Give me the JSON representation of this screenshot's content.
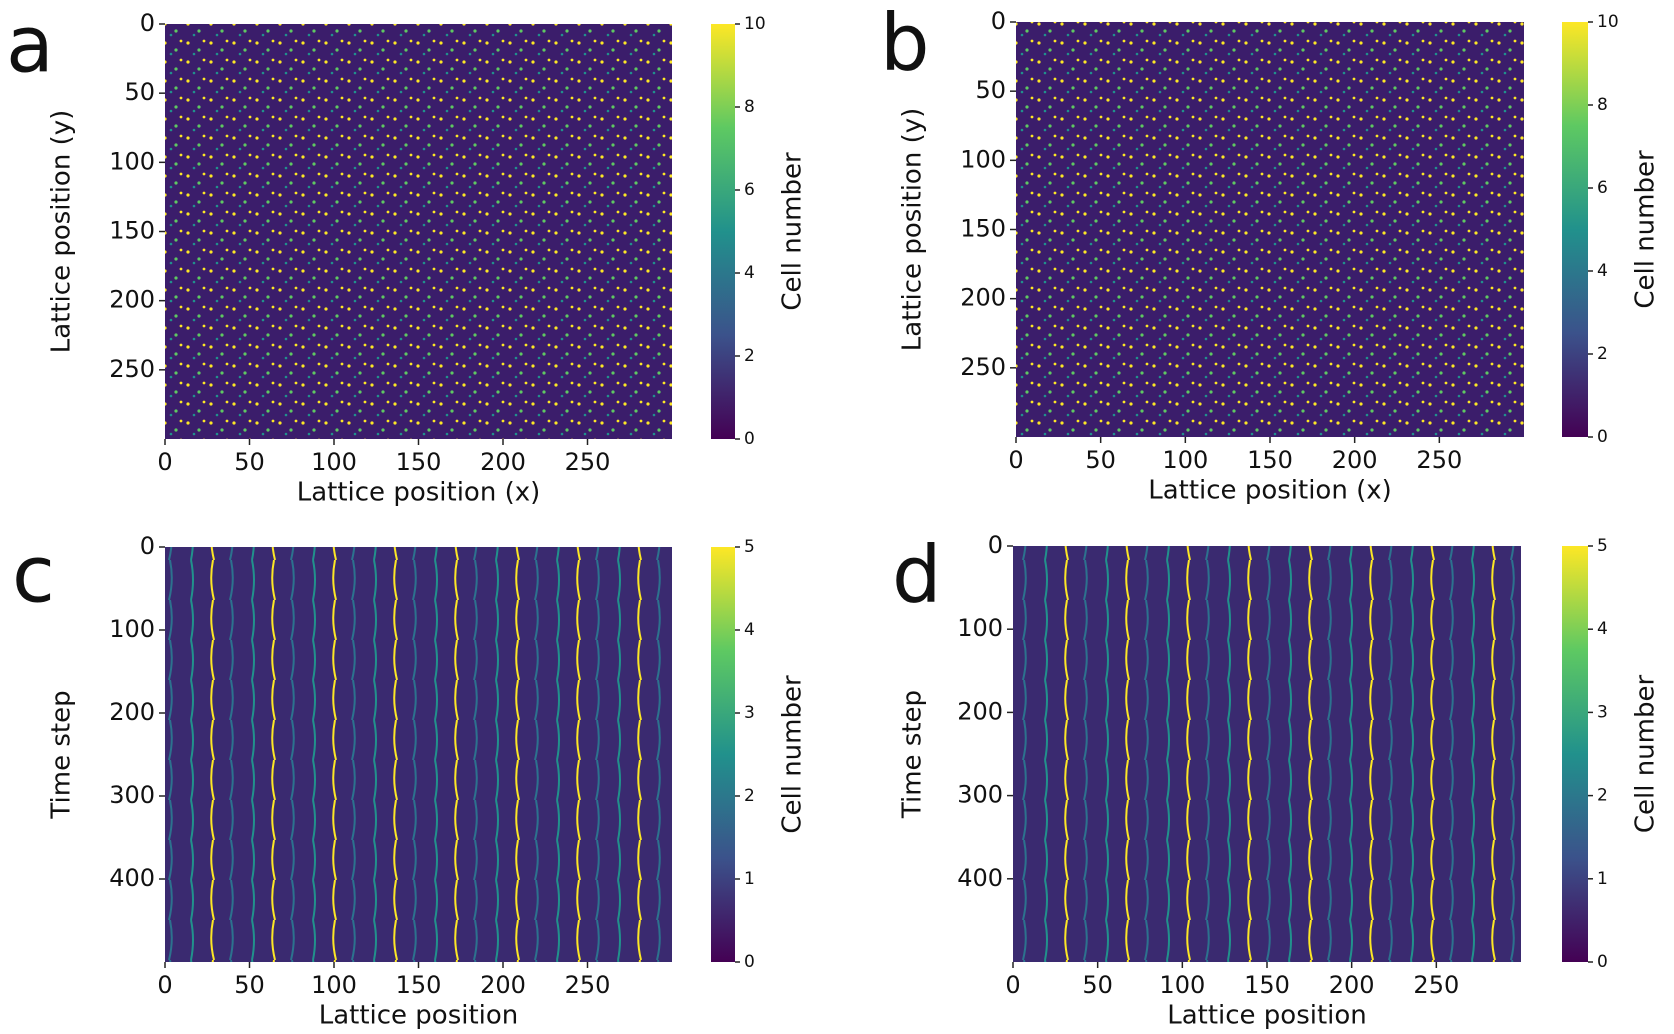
{
  "chart_data": [
    {
      "type": "heatmap",
      "label": "a",
      "xlabel": "Lattice position (x)",
      "ylabel": "Lattice position (y)",
      "xlim": [
        0,
        300
      ],
      "xticks": [
        0,
        50,
        100,
        150,
        200,
        250
      ],
      "ylim": [
        300,
        0
      ],
      "yticks": [
        0,
        50,
        100,
        150,
        200,
        250
      ],
      "colorbar_label": "Cell number",
      "clim": [
        0,
        10
      ],
      "cticks": [
        0,
        2,
        4,
        6,
        8,
        10
      ],
      "texture": "dots"
    },
    {
      "type": "heatmap",
      "label": "b",
      "xlabel": "Lattice position (x)",
      "ylabel": "Lattice position (y)",
      "xlim": [
        0,
        300
      ],
      "xticks": [
        0,
        50,
        100,
        150,
        200,
        250
      ],
      "ylim": [
        300,
        0
      ],
      "yticks": [
        0,
        50,
        100,
        150,
        200,
        250
      ],
      "colorbar_label": "Cell number",
      "clim": [
        0,
        10
      ],
      "cticks": [
        0,
        2,
        4,
        6,
        8,
        10
      ],
      "texture": "dots"
    },
    {
      "type": "heatmap",
      "label": "c",
      "xlabel": "Lattice position",
      "ylabel": "Time step",
      "xlim": [
        0,
        300
      ],
      "xticks": [
        0,
        50,
        100,
        150,
        200,
        250
      ],
      "ylim": [
        500,
        0
      ],
      "yticks": [
        0,
        100,
        200,
        300,
        400
      ],
      "colorbar_label": "Cell number",
      "clim": [
        0,
        5
      ],
      "cticks": [
        0,
        1,
        2,
        3,
        4,
        5
      ],
      "texture": "streaks"
    },
    {
      "type": "heatmap",
      "label": "d",
      "xlabel": "Lattice position",
      "ylabel": "Time step",
      "xlim": [
        0,
        300
      ],
      "xticks": [
        0,
        50,
        100,
        150,
        200,
        250
      ],
      "ylim": [
        500,
        0
      ],
      "yticks": [
        0,
        100,
        200,
        300,
        400
      ],
      "colorbar_label": "Cell number",
      "clim": [
        0,
        5
      ],
      "cticks": [
        0,
        1,
        2,
        3,
        4,
        5
      ],
      "texture": "streaks"
    }
  ]
}
